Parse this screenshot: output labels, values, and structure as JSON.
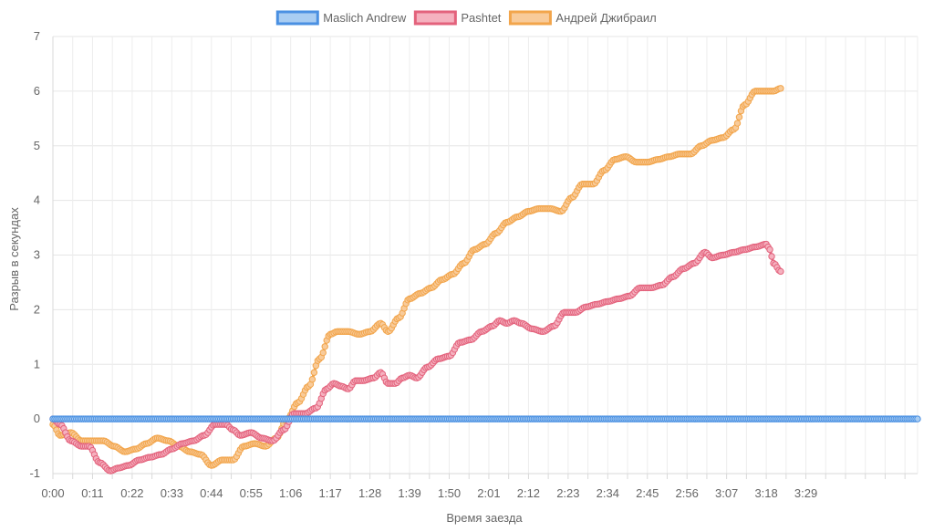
{
  "chart_data": {
    "type": "line",
    "title": "",
    "xlabel": "Время заезда",
    "ylabel": "Разрыв в секундах",
    "ylim": [
      -1,
      7
    ],
    "y_ticks": [
      "7",
      "6",
      "5",
      "4",
      "3",
      "2",
      "1",
      "0",
      "-1"
    ],
    "x_tick_labels": [
      "0:00",
      "0:11",
      "0:22",
      "0:33",
      "0:44",
      "0:55",
      "1:06",
      "1:17",
      "1:28",
      "1:39",
      "1:50",
      "2:01",
      "2:12",
      "2:23",
      "2:34",
      "2:45",
      "2:56",
      "3:07",
      "3:18",
      "3:29"
    ],
    "x_range_seconds": [
      0,
      240
    ],
    "grid": true,
    "legend_position": "top",
    "series": [
      {
        "name": "Maslich Andrew",
        "color": "#4a90e2",
        "fill": "#a9cdf2",
        "points": [
          [
            0,
            0
          ],
          [
            240,
            0
          ]
        ]
      },
      {
        "name": "Pashtet",
        "color": "#e3627c",
        "fill": "#f5b1bf",
        "points": [
          [
            0,
            0
          ],
          [
            2,
            -0.1
          ],
          [
            5,
            -0.4
          ],
          [
            8,
            -0.5
          ],
          [
            10,
            -0.5
          ],
          [
            13,
            -0.8
          ],
          [
            16,
            -0.95
          ],
          [
            18,
            -0.9
          ],
          [
            21,
            -0.85
          ],
          [
            24,
            -0.75
          ],
          [
            27,
            -0.7
          ],
          [
            30,
            -0.65
          ],
          [
            33,
            -0.55
          ],
          [
            36,
            -0.45
          ],
          [
            39,
            -0.4
          ],
          [
            42,
            -0.3
          ],
          [
            45,
            -0.1
          ],
          [
            48,
            -0.1
          ],
          [
            50,
            -0.2
          ],
          [
            52,
            -0.3
          ],
          [
            55,
            -0.25
          ],
          [
            58,
            -0.35
          ],
          [
            61,
            -0.4
          ],
          [
            64,
            -0.2
          ],
          [
            67,
            0.1
          ],
          [
            70,
            0.1
          ],
          [
            73,
            0.2
          ],
          [
            76,
            0.55
          ],
          [
            78,
            0.65
          ],
          [
            80,
            0.6
          ],
          [
            82,
            0.55
          ],
          [
            84,
            0.7
          ],
          [
            86,
            0.7
          ],
          [
            89,
            0.75
          ],
          [
            91,
            0.85
          ],
          [
            93,
            0.65
          ],
          [
            95,
            0.65
          ],
          [
            97,
            0.75
          ],
          [
            99,
            0.8
          ],
          [
            101,
            0.75
          ],
          [
            104,
            0.95
          ],
          [
            107,
            1.1
          ],
          [
            110,
            1.15
          ],
          [
            113,
            1.4
          ],
          [
            116,
            1.45
          ],
          [
            119,
            1.6
          ],
          [
            122,
            1.7
          ],
          [
            124,
            1.8
          ],
          [
            126,
            1.75
          ],
          [
            128,
            1.8
          ],
          [
            130,
            1.75
          ],
          [
            133,
            1.65
          ],
          [
            136,
            1.6
          ],
          [
            139,
            1.7
          ],
          [
            142,
            1.95
          ],
          [
            145,
            1.95
          ],
          [
            148,
            2.05
          ],
          [
            151,
            2.1
          ],
          [
            154,
            2.15
          ],
          [
            157,
            2.2
          ],
          [
            160,
            2.25
          ],
          [
            163,
            2.4
          ],
          [
            166,
            2.4
          ],
          [
            169,
            2.45
          ],
          [
            172,
            2.6
          ],
          [
            175,
            2.75
          ],
          [
            178,
            2.85
          ],
          [
            181,
            3.05
          ],
          [
            183,
            2.95
          ],
          [
            186,
            3.0
          ],
          [
            189,
            3.05
          ],
          [
            192,
            3.1
          ],
          [
            195,
            3.15
          ],
          [
            198,
            3.2
          ],
          [
            199,
            3.1
          ],
          [
            200,
            2.85
          ],
          [
            202,
            2.7
          ]
        ]
      },
      {
        "name": "Андрей Джибраил",
        "color": "#f2a54b",
        "fill": "#f8cb9a",
        "points": [
          [
            0,
            -0.1
          ],
          [
            2,
            -0.3
          ],
          [
            5,
            -0.25
          ],
          [
            8,
            -0.4
          ],
          [
            11,
            -0.4
          ],
          [
            14,
            -0.4
          ],
          [
            17,
            -0.5
          ],
          [
            20,
            -0.6
          ],
          [
            23,
            -0.55
          ],
          [
            26,
            -0.45
          ],
          [
            29,
            -0.35
          ],
          [
            32,
            -0.4
          ],
          [
            35,
            -0.5
          ],
          [
            38,
            -0.6
          ],
          [
            41,
            -0.65
          ],
          [
            44,
            -0.85
          ],
          [
            47,
            -0.75
          ],
          [
            50,
            -0.75
          ],
          [
            53,
            -0.5
          ],
          [
            56,
            -0.45
          ],
          [
            59,
            -0.5
          ],
          [
            62,
            -0.35
          ],
          [
            65,
            0.0
          ],
          [
            68,
            0.3
          ],
          [
            71,
            0.6
          ],
          [
            74,
            1.1
          ],
          [
            77,
            1.55
          ],
          [
            79,
            1.6
          ],
          [
            82,
            1.6
          ],
          [
            85,
            1.55
          ],
          [
            88,
            1.6
          ],
          [
            91,
            1.75
          ],
          [
            93,
            1.6
          ],
          [
            96,
            1.85
          ],
          [
            99,
            2.2
          ],
          [
            102,
            2.3
          ],
          [
            105,
            2.4
          ],
          [
            108,
            2.55
          ],
          [
            111,
            2.65
          ],
          [
            114,
            2.85
          ],
          [
            117,
            3.1
          ],
          [
            120,
            3.2
          ],
          [
            123,
            3.4
          ],
          [
            126,
            3.6
          ],
          [
            129,
            3.7
          ],
          [
            132,
            3.8
          ],
          [
            135,
            3.85
          ],
          [
            138,
            3.85
          ],
          [
            141,
            3.8
          ],
          [
            144,
            4.05
          ],
          [
            147,
            4.3
          ],
          [
            150,
            4.3
          ],
          [
            153,
            4.55
          ],
          [
            156,
            4.75
          ],
          [
            159,
            4.8
          ],
          [
            162,
            4.7
          ],
          [
            165,
            4.7
          ],
          [
            168,
            4.75
          ],
          [
            171,
            4.8
          ],
          [
            174,
            4.85
          ],
          [
            177,
            4.85
          ],
          [
            180,
            5.0
          ],
          [
            183,
            5.1
          ],
          [
            186,
            5.15
          ],
          [
            189,
            5.3
          ],
          [
            192,
            5.75
          ],
          [
            195,
            6.0
          ],
          [
            198,
            6.0
          ],
          [
            200,
            6.0
          ],
          [
            202,
            6.05
          ]
        ]
      }
    ]
  }
}
